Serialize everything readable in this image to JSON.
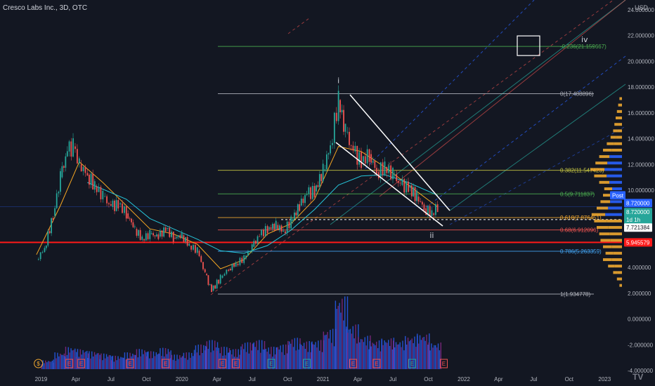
{
  "header": {
    "title": "Cresco Labs Inc., 3D, OTC",
    "currency": "USD"
  },
  "colors": {
    "background": "#131722",
    "up": "#26a69a",
    "down": "#ef5350",
    "volume_up": "#2962ff",
    "volume_down": "#8e2a8f",
    "volume_profile": "#f0a830",
    "volume_profile_value": "#2962ff",
    "ema_fast": "#f5a623",
    "sma_slow": "#26c6da",
    "support_line": "#ff1a1a",
    "price_tag": "#26a69a"
  },
  "chart_data": {
    "type": "line",
    "title": "Cresco Labs Inc., 3D, OTC",
    "ylabel": "USD",
    "ylim": [
      -4,
      24
    ],
    "y_ticks": [
      "24.000000",
      "22.000000",
      "20.000000",
      "18.000000",
      "16.000000",
      "14.000000",
      "12.000000",
      "10.000000",
      "8.000000",
      "6.000000",
      "4.000000",
      "2.000000",
      "0.000000",
      "-2.000000",
      "-4.000000"
    ],
    "x_ticks": [
      "2019",
      "Apr",
      "Jul",
      "Oct",
      "2020",
      "Apr",
      "Jul",
      "Oct",
      "2021",
      "Apr",
      "Jul",
      "Oct",
      "2022",
      "Apr",
      "Jul",
      "Oct",
      "2023"
    ],
    "price_series": {
      "name": "",
      "dates": [
        "2018-12-20",
        "2019-01-10",
        "2019-02-01",
        "2019-02-20",
        "2019-03-10",
        "2019-03-25",
        "2019-04-10",
        "2019-05-01",
        "2019-05-20",
        "2019-06-10",
        "2019-07-01",
        "2019-07-20",
        "2019-08-10",
        "2019-09-01",
        "2019-09-20",
        "2019-10-10",
        "2019-11-01",
        "2019-11-20",
        "2019-12-10",
        "2020-01-01",
        "2020-01-20",
        "2020-02-10",
        "2020-03-01",
        "2020-03-18",
        "2020-04-10",
        "2020-05-01",
        "2020-05-20",
        "2020-06-10",
        "2020-07-01",
        "2020-07-20",
        "2020-08-10",
        "2020-09-01",
        "2020-09-20",
        "2020-10-10",
        "2020-11-01",
        "2020-11-20",
        "2020-12-10",
        "2021-01-01",
        "2021-01-20",
        "2021-02-10",
        "2021-02-28",
        "2021-03-20",
        "2021-04-10",
        "2021-05-01",
        "2021-05-20",
        "2021-06-10",
        "2021-07-01",
        "2021-07-20",
        "2021-08-10",
        "2021-09-01",
        "2021-09-20",
        "2021-10-10",
        "2021-10-25"
      ],
      "values": [
        4.6,
        5.5,
        8.0,
        11.0,
        13.0,
        13.4,
        12.0,
        11.2,
        10.3,
        9.5,
        8.7,
        8.9,
        8.2,
        7.0,
        6.2,
        6.6,
        6.4,
        7.0,
        6.3,
        6.5,
        5.7,
        5.3,
        3.5,
        2.2,
        3.2,
        3.9,
        4.3,
        4.7,
        5.6,
        6.5,
        7.0,
        7.3,
        6.8,
        7.6,
        8.8,
        9.7,
        9.9,
        11.5,
        13.5,
        17.0,
        14.5,
        13.0,
        12.2,
        12.8,
        11.4,
        11.8,
        11.2,
        10.4,
        10.2,
        9.5,
        8.6,
        8.2,
        8.72
      ]
    },
    "moving_averages": [
      {
        "name": "",
        "color": "#f5a623",
        "dates": [
          "2018-12-20",
          "2019-02-20",
          "2019-04-10",
          "2019-06-10",
          "2019-08-10",
          "2019-10-10",
          "2019-12-10",
          "2020-02-10",
          "2020-04-10",
          "2020-06-10",
          "2020-08-10",
          "2020-10-10",
          "2020-12-10",
          "2021-02-10",
          "2021-04-10",
          "2021-06-10",
          "2021-08-10",
          "2021-10-25"
        ],
        "values": [
          5.0,
          8.8,
          12.2,
          10.6,
          8.8,
          7.0,
          6.6,
          5.8,
          3.9,
          4.6,
          6.6,
          7.4,
          9.3,
          13.4,
          13.0,
          11.8,
          10.4,
          8.7
        ]
      },
      {
        "name": "",
        "color": "#26c6da",
        "dates": [
          "2019-05-01",
          "2019-08-10",
          "2019-10-10",
          "2019-12-10",
          "2020-02-10",
          "2020-04-10",
          "2020-06-10",
          "2020-08-10",
          "2020-10-10",
          "2020-12-10",
          "2021-02-10",
          "2021-04-10",
          "2021-06-10",
          "2021-08-10",
          "2021-10-25"
        ],
        "values": [
          10.6,
          9.3,
          7.8,
          7.0,
          6.2,
          5.3,
          5.1,
          5.7,
          6.9,
          8.5,
          10.4,
          11.1,
          11.2,
          10.6,
          9.6
        ]
      }
    ],
    "volume": {
      "dates": [
        "2019-01",
        "2019-02",
        "2019-03",
        "2019-04",
        "2019-05",
        "2019-06",
        "2019-07",
        "2019-08",
        "2019-09",
        "2019-10",
        "2019-11",
        "2019-12",
        "2020-01",
        "2020-02",
        "2020-03",
        "2020-04",
        "2020-05",
        "2020-06",
        "2020-07",
        "2020-08",
        "2020-09",
        "2020-10",
        "2020-11",
        "2020-12",
        "2021-01",
        "2021-02",
        "2021-03",
        "2021-04",
        "2021-05",
        "2021-06",
        "2021-07",
        "2021-08",
        "2021-09",
        "2021-10"
      ],
      "values": [
        0.8,
        1.5,
        2.0,
        1.8,
        1.6,
        1.4,
        1.2,
        1.5,
        1.8,
        1.6,
        1.9,
        1.3,
        1.5,
        2.2,
        2.6,
        2.0,
        1.8,
        2.4,
        2.6,
        2.0,
        2.2,
        2.8,
        2.5,
        2.6,
        3.6,
        6.5,
        4.0,
        3.0,
        2.6,
        2.8,
        2.6,
        3.0,
        3.2,
        2.4
      ]
    },
    "volume_profile": {
      "prices": [
        2.5,
        3.0,
        3.5,
        4.0,
        4.5,
        5.0,
        5.5,
        6.0,
        6.5,
        7.0,
        7.5,
        8.0,
        8.5,
        9.0,
        9.5,
        10.0,
        10.5,
        11.0,
        11.5,
        12.0,
        12.5,
        13.0,
        13.5,
        14.0,
        14.5,
        15.0,
        15.5,
        16.0,
        16.5,
        17.0
      ],
      "values": [
        4,
        8,
        14,
        22,
        30,
        26,
        30,
        34,
        36,
        40,
        44,
        48,
        40,
        34,
        30,
        28,
        36,
        44,
        50,
        42,
        36,
        30,
        24,
        18,
        14,
        12,
        10,
        8,
        6,
        4
      ]
    },
    "fibonacci": [
      {
        "label": "-0.236(21.159667)",
        "price": 21.159667,
        "color": "#4caf50"
      },
      {
        "label": "0(17.488896)",
        "price": 17.488896,
        "color": "#b2b5be"
      },
      {
        "label": "0.382(11.547423)",
        "price": 11.547423,
        "color": "#c6c642"
      },
      {
        "label": "0.5(9.711837)",
        "price": 9.711837,
        "color": "#4caf50"
      },
      {
        "label": "0.618(7.876451)",
        "price": 7.876451,
        "color": "#f0a830"
      },
      {
        "label": "0.68(6.912096)",
        "price": 6.912096,
        "color": "#ef5350"
      },
      {
        "label": "0.786(5.263359)",
        "price": 5.263359,
        "color": "#42a5f5"
      },
      {
        "label": "1(1.934778)",
        "price": 1.934778,
        "color": "#b2b5be"
      }
    ],
    "wave_labels": [
      {
        "label": "i",
        "date": "2021-02-10",
        "price": 18.3
      },
      {
        "label": "ii",
        "date": "2021-10-10",
        "price": 6.3
      },
      {
        "label": "iv",
        "date": "2022-11-10",
        "price": 21.5
      }
    ],
    "support_price": 5.945579,
    "dashed_level": 7.721384,
    "current_price": 8.72,
    "price_tags": [
      {
        "label": "Post",
        "price": 9.6,
        "color": "#2962ff"
      },
      {
        "label": "8.720000",
        "price": 9.0,
        "color": "#2962ff"
      },
      {
        "label": "8.720000",
        "price": 8.3,
        "color": "#26a69a"
      },
      {
        "label": "1d 1h",
        "price": 7.7,
        "color": "#26a69a"
      },
      {
        "label": "7.721384",
        "price": 7.1,
        "color": "#ffffff"
      },
      {
        "label": "5.945579",
        "price": 5.945579,
        "color": "#ff1a1a"
      }
    ],
    "event_markers": [
      {
        "label": "$",
        "date": "2018-12-25",
        "color": "#f0a830"
      },
      {
        "label": "E",
        "date": "2019-03-15",
        "color": "#ef5350"
      },
      {
        "label": "E",
        "date": "2019-04-15",
        "color": "#ef5350"
      },
      {
        "label": "E",
        "date": "2019-08-20",
        "color": "#ef5350"
      },
      {
        "label": "E",
        "date": "2019-11-20",
        "color": "#ef5350"
      },
      {
        "label": "E",
        "date": "2020-04-15",
        "color": "#ef5350"
      },
      {
        "label": "E",
        "date": "2020-05-20",
        "color": "#ef5350"
      },
      {
        "label": "E",
        "date": "2020-08-20",
        "color": "#26a69a"
      },
      {
        "label": "E",
        "date": "2020-11-20",
        "color": "#26a69a"
      },
      {
        "label": "E",
        "date": "2021-03-20",
        "color": "#ef5350"
      },
      {
        "label": "E",
        "date": "2021-05-20",
        "color": "#ef5350"
      },
      {
        "label": "E",
        "date": "2021-08-20",
        "color": "#26a69a"
      },
      {
        "label": "E",
        "date": "2021-11-10",
        "color": "#ef5350"
      }
    ],
    "grid": false,
    "legend": "none"
  },
  "footer": {
    "logo": "TV"
  }
}
